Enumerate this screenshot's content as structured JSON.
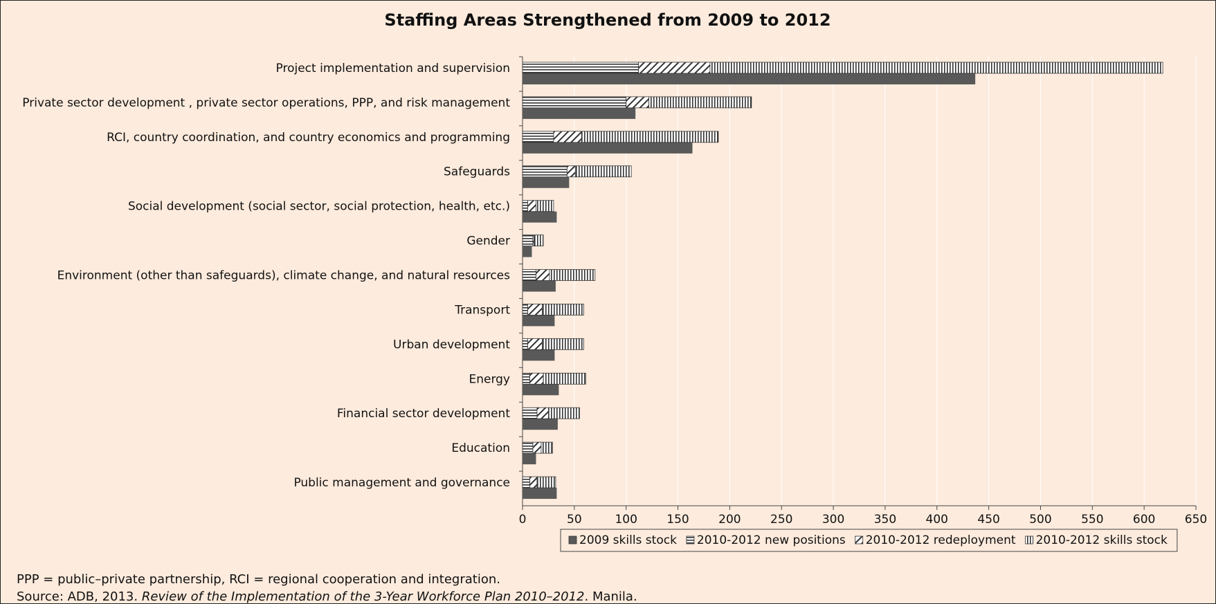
{
  "chart_data": {
    "type": "bar",
    "orientation": "horizontal",
    "title": "Staffing Areas Strengthened from 2009 to 2012",
    "categories": [
      "Project implementation and supervision",
      "Private sector development , private sector operations, PPP, and risk management",
      "RCI, country coordination, and country economics and programming",
      "Safeguards",
      "Social development (social sector, social protection, health, etc.)",
      "Gender",
      "Environment (other than safeguards), climate change, and natural resources",
      "Transport",
      "Urban development",
      "Energy",
      "Financial sector development",
      "Education",
      "Public management and governance"
    ],
    "series": [
      {
        "name": "2009 skills stock",
        "color": "#595959",
        "pattern": "solid",
        "values": [
          437,
          109,
          164,
          45,
          33,
          9,
          32,
          31,
          31,
          35,
          34,
          13,
          33
        ]
      },
      {
        "name": "2010-2012 new positions",
        "color": "#3a3a3a",
        "pattern": "horizontal",
        "stack": "upper",
        "values": [
          112,
          100,
          30,
          43,
          5,
          10,
          13,
          5,
          5,
          7,
          14,
          10,
          7
        ]
      },
      {
        "name": "2010-2012  redeployment",
        "color": "#3a3a3a",
        "pattern": "diagonal",
        "stack": "upper",
        "values": [
          69,
          22,
          27,
          8,
          8,
          1,
          13,
          14,
          14,
          13,
          11,
          8,
          7
        ]
      },
      {
        "name": "2010-2012  skills stock",
        "color": "#3a3a3a",
        "pattern": "vertical",
        "stack": "upper",
        "values": [
          437,
          99,
          132,
          54,
          17,
          9,
          44,
          40,
          40,
          41,
          30,
          11,
          18
        ]
      }
    ],
    "xlim": [
      0,
      650
    ],
    "xticks": [
      0,
      50,
      100,
      150,
      200,
      250,
      300,
      350,
      400,
      450,
      500,
      550,
      600,
      650
    ],
    "grid": true,
    "legend": "bottom"
  },
  "notes": {
    "abbreviations": "PPP = public–private partnership, RCI = regional cooperation and integration.",
    "source_prefix": "Source: ADB, 2013. ",
    "source_title": "Review of the Implementation of the 3-Year Workforce Plan 2010–2012",
    "source_suffix": ". Manila."
  }
}
